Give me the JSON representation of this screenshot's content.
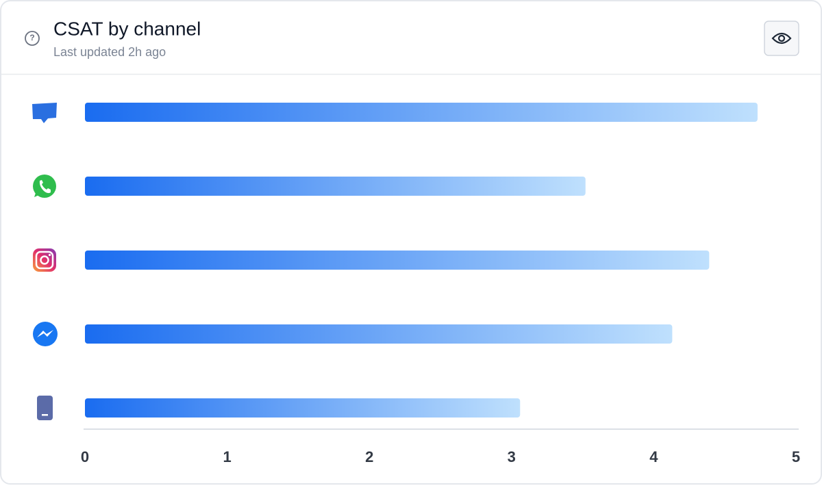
{
  "chart_data": {
    "type": "bar",
    "orientation": "horizontal",
    "title": "CSAT by channel",
    "subtitle": "Last updated 2h ago",
    "values": [
      4.73,
      3.52,
      4.39,
      4.13,
      3.06
    ],
    "color_start": "#1a6cf0",
    "color_end": "#bfe0fd",
    "xlim": [
      0,
      5
    ],
    "xticks": [
      0,
      1,
      2,
      3,
      4,
      5
    ]
  }
}
